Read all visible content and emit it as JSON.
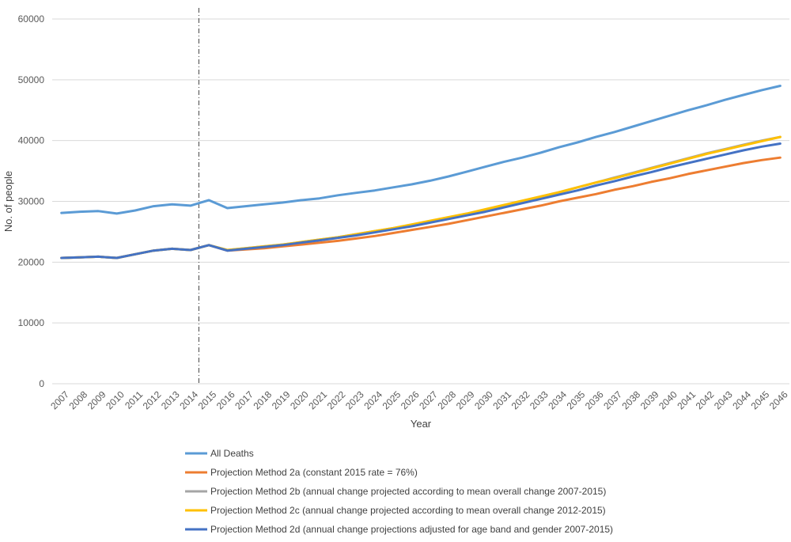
{
  "chart_data": {
    "type": "line",
    "title": "",
    "xlabel": "Year",
    "ylabel": "No. of people",
    "ylim": [
      0,
      60000
    ],
    "yticks": [
      0,
      10000,
      20000,
      30000,
      40000,
      50000,
      60000
    ],
    "grid": "horizontal",
    "legend_position": "bottom",
    "marker_line_after": "2014",
    "categories": [
      "2007",
      "2008",
      "2009",
      "2010",
      "2011",
      "2012",
      "2013",
      "2014",
      "2015",
      "2016",
      "2017",
      "2018",
      "2019",
      "2020",
      "2021",
      "2022",
      "2023",
      "2024",
      "2025",
      "2026",
      "2027",
      "2028",
      "2029",
      "2030",
      "2031",
      "2032",
      "2033",
      "2034",
      "2035",
      "2036",
      "2037",
      "2038",
      "2039",
      "2040",
      "2041",
      "2042",
      "2043",
      "2044",
      "2045",
      "2046"
    ],
    "series": [
      {
        "name": "All Deaths",
        "color": "#5B9BD5",
        "values": [
          28100,
          28300,
          28400,
          28000,
          28500,
          29200,
          29500,
          29300,
          30200,
          28900,
          29200,
          29500,
          29800,
          30200,
          30500,
          31000,
          31400,
          31800,
          32300,
          32800,
          33400,
          34100,
          34900,
          35700,
          36500,
          37200,
          38000,
          38900,
          39700,
          40600,
          41400,
          42300,
          43200,
          44100,
          45000,
          45800,
          46700,
          47500,
          48300,
          49000
        ]
      },
      {
        "name": "Projection Method 2a (constant 2015 rate = 76%)",
        "color": "#ED7D31",
        "values": [
          20700,
          20800,
          20900,
          20700,
          21300,
          21900,
          22200,
          22000,
          22800,
          21900,
          22100,
          22300,
          22600,
          22900,
          23200,
          23500,
          23900,
          24300,
          24800,
          25300,
          25800,
          26300,
          26900,
          27500,
          28100,
          28700,
          29300,
          30000,
          30600,
          31200,
          31900,
          32500,
          33200,
          33800,
          34500,
          35100,
          35700,
          36300,
          36800,
          37200
        ]
      },
      {
        "name": "Projection Method 2b (annual change projected according to mean overall change 2007-2015)",
        "color": "#A5A5A5",
        "values": [
          20700,
          20800,
          20900,
          20700,
          21300,
          21900,
          22200,
          22000,
          22800,
          22000,
          22300,
          22600,
          22900,
          23300,
          23700,
          24100,
          24600,
          25100,
          25600,
          26100,
          26700,
          27300,
          27900,
          28600,
          29300,
          30000,
          30800,
          31500,
          32300,
          33100,
          33900,
          34700,
          35500,
          36300,
          37100,
          37900,
          38600,
          39300,
          40000,
          40600
        ]
      },
      {
        "name": "Projection Method 2c (annual change projected according to mean overall change 2012-2015)",
        "color": "#FFC000",
        "values": [
          20700,
          20800,
          20900,
          20700,
          21300,
          21900,
          22200,
          22000,
          22800,
          22000,
          22300,
          22600,
          22900,
          23300,
          23700,
          24100,
          24600,
          25100,
          25600,
          26200,
          26800,
          27400,
          28000,
          28700,
          29400,
          30100,
          30800,
          31500,
          32300,
          33100,
          33800,
          34600,
          35400,
          36200,
          37000,
          37800,
          38500,
          39200,
          39900,
          40600
        ]
      },
      {
        "name": "Projection Method 2d (annual change projections adjusted for age band and gender 2007-2015)",
        "color": "#4472C4",
        "values": [
          20700,
          20800,
          20900,
          20700,
          21300,
          21900,
          22200,
          22000,
          22800,
          21900,
          22200,
          22500,
          22800,
          23200,
          23600,
          24000,
          24400,
          24900,
          25400,
          25900,
          26500,
          27100,
          27700,
          28300,
          29000,
          29700,
          30400,
          31100,
          31800,
          32600,
          33300,
          34100,
          34800,
          35600,
          36300,
          37000,
          37700,
          38400,
          39000,
          39500
        ]
      }
    ]
  }
}
